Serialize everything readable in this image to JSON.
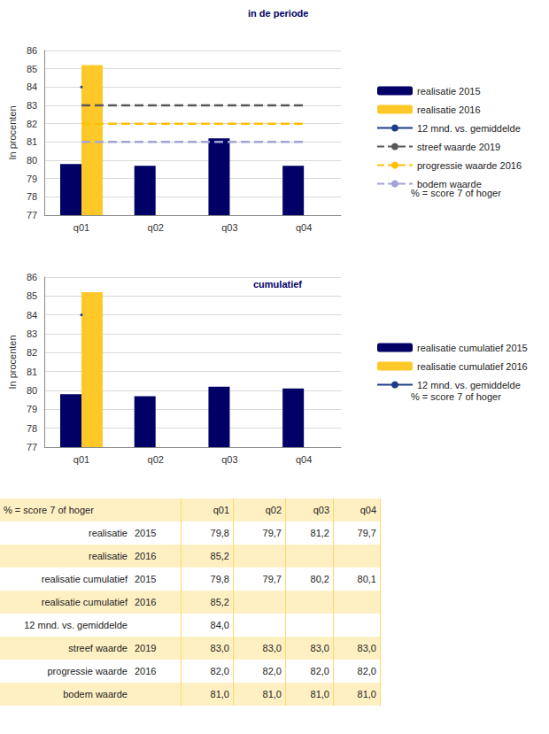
{
  "chart_data": [
    {
      "type": "bar",
      "title": "in de periode",
      "y_label": "In procenten",
      "categories": [
        "q01",
        "q02",
        "q03",
        "q04"
      ],
      "ylim": [
        77,
        86
      ],
      "yticks": [
        77,
        78,
        79,
        80,
        81,
        82,
        83,
        84,
        85,
        86
      ],
      "grid": true,
      "legend": "right",
      "annotation": "% = score 7 of hoger",
      "series": [
        {
          "name": "realisatie 2015",
          "type": "bar",
          "color": "#000066",
          "values": [
            79.8,
            79.7,
            81.2,
            79.7
          ]
        },
        {
          "name": "realisatie 2016",
          "type": "bar",
          "color": "#ffc829",
          "values": [
            85.2,
            null,
            null,
            null
          ]
        },
        {
          "name": "12 mnd. vs. gemiddelde",
          "type": "line",
          "line_style": "solid",
          "color": "#1f3c88",
          "values": [
            84.0,
            null,
            null,
            null
          ]
        },
        {
          "name": "streef waarde 2019",
          "type": "line",
          "line_style": "dashed",
          "color": "#595959",
          "values": [
            83.0,
            83.0,
            83.0,
            83.0
          ]
        },
        {
          "name": "progressie waarde 2016",
          "type": "line",
          "line_style": "dashed",
          "color": "#ffc000",
          "values": [
            82.0,
            82.0,
            82.0,
            82.0
          ]
        },
        {
          "name": "bodem waarde",
          "type": "line",
          "line_style": "dashed",
          "color": "#a3a3d6",
          "values": [
            81.0,
            81.0,
            81.0,
            81.0
          ]
        }
      ]
    },
    {
      "type": "bar",
      "title": "cumulatief",
      "y_label": "In procenten",
      "categories": [
        "q01",
        "q02",
        "q03",
        "q04"
      ],
      "ylim": [
        77,
        86
      ],
      "yticks": [
        77,
        78,
        79,
        80,
        81,
        82,
        83,
        84,
        85,
        86
      ],
      "grid": true,
      "legend": "right",
      "annotation": "% = score 7 of hoger",
      "series": [
        {
          "name": "realisatie cumulatief 2015",
          "type": "bar",
          "color": "#000066",
          "values": [
            79.8,
            79.7,
            80.2,
            80.1
          ]
        },
        {
          "name": "realisatie cumulatief 2016",
          "type": "bar",
          "color": "#ffc829",
          "values": [
            85.2,
            null,
            null,
            null
          ]
        },
        {
          "name": "12 mnd. vs. gemiddelde",
          "type": "line",
          "line_style": "solid",
          "color": "#1f3c88",
          "values": [
            84.0,
            null,
            null,
            null
          ]
        }
      ]
    }
  ],
  "table": {
    "header": [
      "% = score 7 of hoger",
      null,
      "q01",
      "q02",
      "q03",
      "q04"
    ],
    "rows": [
      [
        "realisatie",
        "2015",
        "79,8",
        "79,7",
        "81,2",
        "79,7"
      ],
      [
        "realisatie",
        "2016",
        "85,2",
        null,
        null,
        null
      ],
      [
        "realisatie cumulatief",
        "2015",
        "79,8",
        "79,7",
        "80,2",
        "80,1"
      ],
      [
        "realisatie cumulatief",
        "2016",
        "85,2",
        null,
        null,
        null
      ],
      [
        "12 mnd. vs. gemiddelde",
        null,
        "84,0",
        null,
        null,
        null
      ],
      [
        "streef waarde",
        "2019",
        "83,0",
        "83,0",
        "83,0",
        "83,0"
      ],
      [
        "progressie waarde",
        "2016",
        "82,0",
        "82,0",
        "82,0",
        "82,0"
      ],
      [
        "bodem waarde",
        null,
        "81,0",
        "81,0",
        "81,0",
        "81,0"
      ]
    ]
  }
}
